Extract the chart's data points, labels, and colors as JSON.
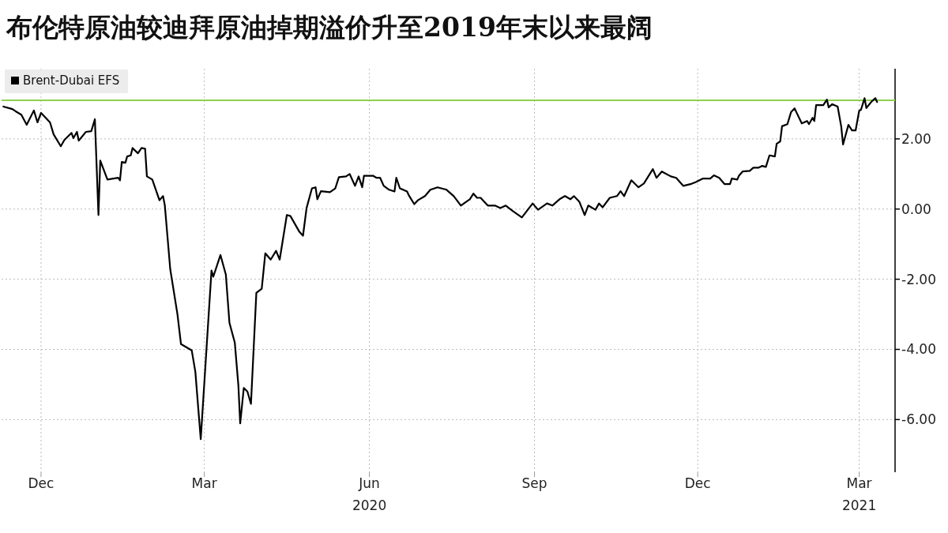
{
  "chart_data": {
    "type": "line",
    "title": "布伦特原油较迪拜原油掉期溢价升至2019年末以来最阔",
    "series": [
      {
        "name": "Brent-Dubai EFS",
        "color": "#000000",
        "x": [
          "2019-11-10",
          "2019-11-15",
          "2019-11-17",
          "2019-11-20",
          "2019-11-23",
          "2019-11-27",
          "2019-11-29",
          "2019-12-01",
          "2019-12-06",
          "2019-12-08",
          "2019-12-12",
          "2019-12-14",
          "2019-12-18",
          "2019-12-19",
          "2019-12-21",
          "2019-12-22",
          "2019-12-26",
          "2019-12-29",
          "2019-12-31",
          "2020-01-02",
          "2020-01-03",
          "2020-01-07",
          "2020-01-13",
          "2020-01-14",
          "2020-01-15",
          "2020-01-17",
          "2020-01-18",
          "2020-01-20",
          "2020-01-21",
          "2020-01-24",
          "2020-01-26",
          "2020-01-28",
          "2020-01-29",
          "2020-02-01",
          "2020-02-05",
          "2020-02-07",
          "2020-02-08",
          "2020-02-11",
          "2020-02-15",
          "2020-02-17",
          "2020-02-23",
          "2020-02-25",
          "2020-02-28",
          "2020-03-05",
          "2020-03-06",
          "2020-03-10",
          "2020-03-13",
          "2020-03-15",
          "2020-03-18",
          "2020-03-20",
          "2020-03-21",
          "2020-03-23",
          "2020-03-25",
          "2020-03-27",
          "2020-03-30",
          "2020-04-02",
          "2020-04-04",
          "2020-04-07",
          "2020-04-10",
          "2020-04-12",
          "2020-04-16",
          "2020-04-18",
          "2020-04-23",
          "2020-04-25",
          "2020-04-27",
          "2020-04-30",
          "2020-05-02",
          "2020-05-03",
          "2020-05-05",
          "2020-05-10",
          "2020-05-13",
          "2020-05-15",
          "2020-05-19",
          "2020-05-21",
          "2020-05-24",
          "2020-05-26",
          "2020-05-28",
          "2020-05-29",
          "2020-06-03",
          "2020-06-05",
          "2020-06-07",
          "2020-06-09",
          "2020-06-12",
          "2020-06-15",
          "2020-06-16",
          "2020-06-18",
          "2020-06-22",
          "2020-06-23",
          "2020-06-26",
          "2020-06-28",
          "2020-07-02",
          "2020-07-05",
          "2020-07-09",
          "2020-07-14",
          "2020-07-18",
          "2020-07-22",
          "2020-07-27",
          "2020-07-29",
          "2020-07-31",
          "2020-08-02",
          "2020-08-06",
          "2020-08-10",
          "2020-08-13",
          "2020-08-16",
          "2020-08-20",
          "2020-08-25",
          "2020-08-31",
          "2020-09-03",
          "2020-09-08",
          "2020-09-11",
          "2020-09-15",
          "2020-09-18",
          "2020-09-21",
          "2020-09-23",
          "2020-09-26",
          "2020-09-29",
          "2020-10-01",
          "2020-10-05",
          "2020-10-07",
          "2020-10-09",
          "2020-10-13",
          "2020-10-17",
          "2020-10-19",
          "2020-10-21",
          "2020-10-25",
          "2020-10-29",
          "2020-11-01",
          "2020-11-06",
          "2020-11-08",
          "2020-11-11",
          "2020-11-16",
          "2020-11-19",
          "2020-11-23",
          "2020-11-27",
          "2020-11-30",
          "2020-12-04",
          "2020-12-08",
          "2020-12-10",
          "2020-12-13",
          "2020-12-16",
          "2020-12-19",
          "2020-12-20",
          "2020-12-23",
          "2020-12-24",
          "2020-12-26",
          "2020-12-30",
          "2021-01-01",
          "2021-01-04",
          "2021-01-06",
          "2021-01-08",
          "2021-01-10",
          "2021-01-13",
          "2021-01-14",
          "2021-01-16",
          "2021-01-17",
          "2021-01-20",
          "2021-01-22",
          "2021-01-24",
          "2021-01-25",
          "2021-01-28",
          "2021-01-31",
          "2021-02-01",
          "2021-02-03",
          "2021-02-04",
          "2021-02-05",
          "2021-02-09",
          "2021-02-11",
          "2021-02-12",
          "2021-02-14",
          "2021-02-17",
          "2021-02-19",
          "2021-02-20",
          "2021-02-23",
          "2021-02-25",
          "2021-02-27",
          "2021-03-01",
          "2021-03-02",
          "2021-03-04",
          "2021-03-05",
          "2021-03-08",
          "2021-03-10",
          "2021-03-11"
        ],
        "values": [
          2.92,
          2.85,
          2.78,
          2.69,
          2.4,
          2.81,
          2.47,
          2.74,
          2.47,
          2.13,
          1.79,
          1.97,
          2.17,
          2.02,
          2.2,
          1.95,
          2.2,
          2.22,
          2.56,
          -0.17,
          1.38,
          0.84,
          0.89,
          0.82,
          1.34,
          1.32,
          1.5,
          1.53,
          1.74,
          1.59,
          1.74,
          1.72,
          0.93,
          0.84,
          0.25,
          0.37,
          0.1,
          -1.71,
          -2.99,
          -3.85,
          -4.03,
          -4.64,
          -6.56,
          -1.75,
          -1.93,
          -1.31,
          -1.87,
          -3.24,
          -3.81,
          -5.04,
          -6.11,
          -5.1,
          -5.2,
          -5.55,
          -2.39,
          -2.27,
          -1.26,
          -1.44,
          -1.19,
          -1.44,
          -0.17,
          -0.2,
          -0.65,
          -0.76,
          0.03,
          0.59,
          0.62,
          0.28,
          0.51,
          0.48,
          0.59,
          0.91,
          0.93,
          1.0,
          0.66,
          0.93,
          0.62,
          0.95,
          0.95,
          0.89,
          0.89,
          0.66,
          0.55,
          0.5,
          0.89,
          0.59,
          0.5,
          0.39,
          0.14,
          0.25,
          0.37,
          0.55,
          0.62,
          0.55,
          0.37,
          0.1,
          0.28,
          0.44,
          0.32,
          0.32,
          0.1,
          0.1,
          0.03,
          0.1,
          -0.06,
          -0.24,
          0.16,
          -0.02,
          0.16,
          0.1,
          0.28,
          0.37,
          0.28,
          0.37,
          0.21,
          -0.17,
          0.1,
          -0.02,
          0.16,
          0.05,
          0.32,
          0.37,
          0.51,
          0.37,
          0.82,
          0.62,
          0.73,
          1.14,
          0.89,
          1.07,
          0.93,
          0.89,
          0.66,
          0.71,
          0.77,
          0.87,
          0.87,
          0.96,
          0.89,
          0.71,
          0.71,
          0.87,
          0.84,
          0.95,
          1.07,
          1.09,
          1.18,
          1.18,
          1.23,
          1.2,
          1.53,
          1.5,
          1.86,
          1.93,
          2.36,
          2.42,
          2.76,
          2.87,
          2.76,
          2.44,
          2.51,
          2.42,
          2.6,
          2.51,
          2.96,
          2.96,
          3.12,
          2.9,
          2.99,
          2.92,
          2.35,
          1.84,
          2.4,
          2.24,
          2.24,
          2.8,
          2.83,
          3.16,
          2.88,
          3.07,
          3.16,
          3.05
        ]
      }
    ],
    "xlim": [
      "2019-11-09",
      "2021-03-21"
    ],
    "xticks": [
      {
        "value": "2019-12-01",
        "label": "Dec"
      },
      {
        "value": "2020-03-01",
        "label": "Mar"
      },
      {
        "value": "2020-06-01",
        "label": "Jun\n2020"
      },
      {
        "value": "2020-09-01",
        "label": "Sep"
      },
      {
        "value": "2020-12-01",
        "label": "Dec"
      },
      {
        "value": "2021-03-01",
        "label": "Mar\n2021"
      }
    ],
    "ylim": [
      -7.5,
      4
    ],
    "yticks": [
      {
        "value": -6,
        "label": "-6.00"
      },
      {
        "value": -4,
        "label": "-4.00"
      },
      {
        "value": -2,
        "label": "-2.00"
      },
      {
        "value": 0,
        "label": "0.00"
      },
      {
        "value": 2,
        "label": "2.00"
      }
    ],
    "ref_lines": [
      {
        "axis": "y",
        "value": 3.1,
        "color": "#8fd14f"
      }
    ],
    "grid": true,
    "legend": "top left",
    "line_style": "solid"
  }
}
